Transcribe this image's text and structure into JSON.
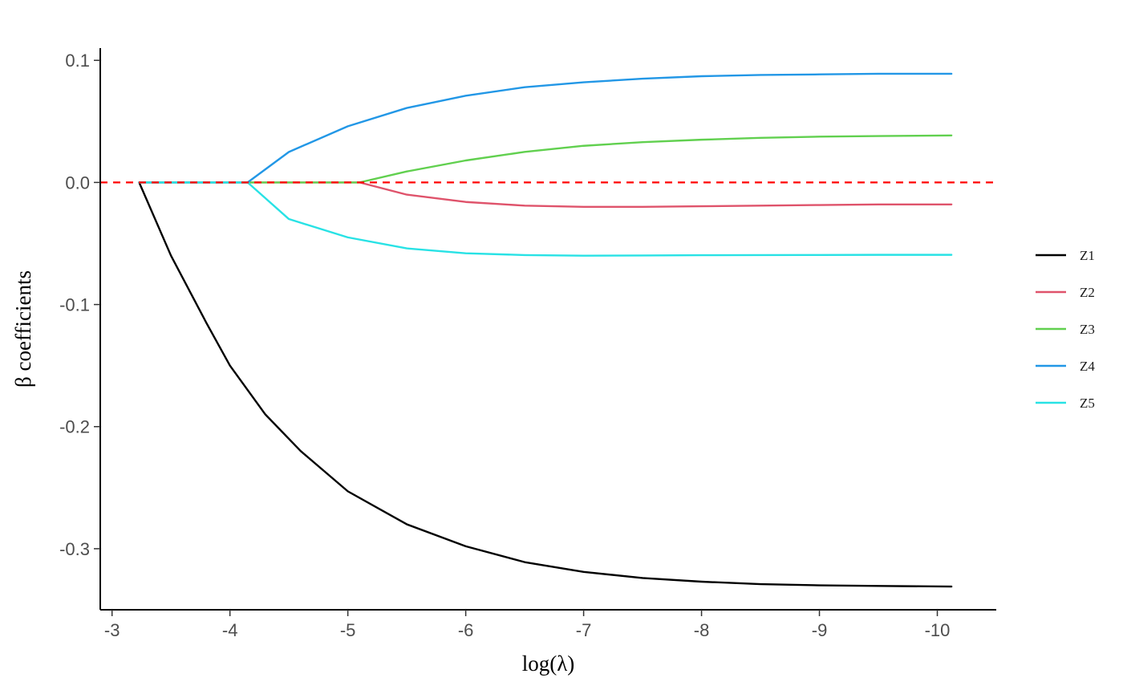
{
  "chart_data": {
    "type": "line",
    "xlabel": "log(λ)",
    "ylabel": "β coefficients",
    "x_reversed": true,
    "xlim": [
      -2.9,
      -10.5
    ],
    "ylim": [
      -0.35,
      0.11
    ],
    "x_ticks": [
      -3,
      -4,
      -5,
      -6,
      -7,
      -8,
      -9,
      -10
    ],
    "x_tick_labels": [
      "-3",
      "-4",
      "-5",
      "-6",
      "-7",
      "-8",
      "-9",
      "-10"
    ],
    "y_ticks": [
      0.1,
      0.0,
      -0.1,
      -0.2,
      -0.3
    ],
    "y_tick_labels": [
      "0.1",
      "0.0",
      "-0.1",
      "-0.2",
      "-0.3"
    ],
    "grid": false,
    "legend_position": "right",
    "reference_line": {
      "y": 0,
      "style": "dashed",
      "color": "#ff0000"
    },
    "series": [
      {
        "name": "Z1",
        "color": "#000000",
        "points": [
          [
            -3.23,
            0
          ],
          [
            -3.5,
            -0.06
          ],
          [
            -3.8,
            -0.115
          ],
          [
            -4.0,
            -0.15
          ],
          [
            -4.3,
            -0.19
          ],
          [
            -4.6,
            -0.22
          ],
          [
            -5.0,
            -0.253
          ],
          [
            -5.5,
            -0.28
          ],
          [
            -6.0,
            -0.298
          ],
          [
            -6.5,
            -0.311
          ],
          [
            -7.0,
            -0.319
          ],
          [
            -7.5,
            -0.324
          ],
          [
            -8.0,
            -0.327
          ],
          [
            -8.5,
            -0.329
          ],
          [
            -9.0,
            -0.33
          ],
          [
            -9.5,
            -0.3305
          ],
          [
            -10.12,
            -0.331
          ]
        ]
      },
      {
        "name": "Z2",
        "color": "#df536b",
        "points": [
          [
            -3.23,
            0
          ],
          [
            -5.1,
            0
          ],
          [
            -5.5,
            -0.01
          ],
          [
            -6.0,
            -0.016
          ],
          [
            -6.5,
            -0.019
          ],
          [
            -7.0,
            -0.02
          ],
          [
            -7.5,
            -0.02
          ],
          [
            -8.0,
            -0.0195
          ],
          [
            -8.5,
            -0.019
          ],
          [
            -9.0,
            -0.0185
          ],
          [
            -9.5,
            -0.018
          ],
          [
            -10.12,
            -0.018
          ]
        ]
      },
      {
        "name": "Z3",
        "color": "#61d04f",
        "points": [
          [
            -3.23,
            0
          ],
          [
            -5.1,
            0
          ],
          [
            -5.5,
            0.009
          ],
          [
            -6.0,
            0.018
          ],
          [
            -6.5,
            0.025
          ],
          [
            -7.0,
            0.03
          ],
          [
            -7.5,
            0.033
          ],
          [
            -8.0,
            0.035
          ],
          [
            -8.5,
            0.0365
          ],
          [
            -9.0,
            0.0375
          ],
          [
            -9.5,
            0.038
          ],
          [
            -10.12,
            0.0385
          ]
        ]
      },
      {
        "name": "Z4",
        "color": "#2297e6",
        "points": [
          [
            -3.23,
            0
          ],
          [
            -4.15,
            0
          ],
          [
            -4.5,
            0.025
          ],
          [
            -5.0,
            0.046
          ],
          [
            -5.5,
            0.061
          ],
          [
            -6.0,
            0.071
          ],
          [
            -6.5,
            0.078
          ],
          [
            -7.0,
            0.082
          ],
          [
            -7.5,
            0.085
          ],
          [
            -8.0,
            0.087
          ],
          [
            -8.5,
            0.088
          ],
          [
            -9.0,
            0.0885
          ],
          [
            -9.5,
            0.089
          ],
          [
            -10.12,
            0.089
          ]
        ]
      },
      {
        "name": "Z5",
        "color": "#28e2e5",
        "points": [
          [
            -3.23,
            0
          ],
          [
            -4.15,
            0
          ],
          [
            -4.5,
            -0.03
          ],
          [
            -5.0,
            -0.045
          ],
          [
            -5.5,
            -0.054
          ],
          [
            -6.0,
            -0.058
          ],
          [
            -6.5,
            -0.0595
          ],
          [
            -7.0,
            -0.06
          ],
          [
            -7.5,
            -0.0598
          ],
          [
            -8.0,
            -0.0596
          ],
          [
            -8.5,
            -0.0595
          ],
          [
            -9.0,
            -0.0594
          ],
          [
            -9.5,
            -0.0593
          ],
          [
            -10.12,
            -0.0593
          ]
        ]
      }
    ]
  }
}
